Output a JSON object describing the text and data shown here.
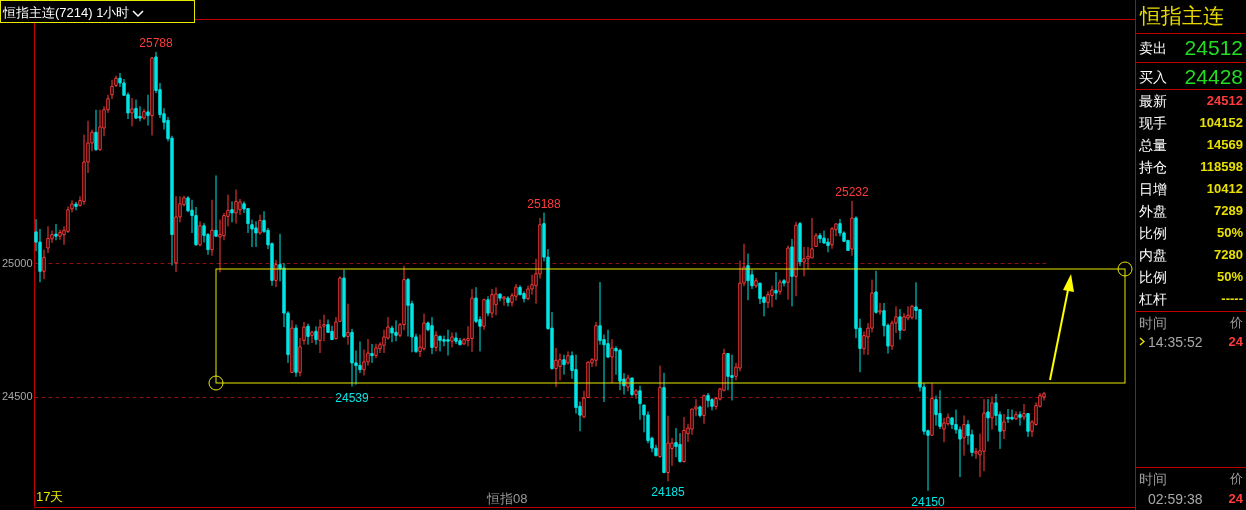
{
  "chart_data": [
    {
      "type": "candlestick",
      "title": "恒指主连(7214)  1小时",
      "categories": [
        null,
        null,
        null,
        null,
        null,
        null,
        null,
        null,
        null,
        null,
        null,
        null,
        null,
        null,
        null,
        null,
        null,
        null,
        null,
        null,
        null,
        null,
        null,
        null,
        null,
        null,
        null,
        null,
        null,
        null,
        null,
        null,
        null,
        null,
        null,
        null,
        null,
        null,
        null,
        null,
        null,
        null,
        null,
        null,
        null,
        null,
        null,
        null,
        null,
        null,
        null,
        null,
        null,
        null,
        null,
        null,
        null,
        null,
        null,
        null,
        null,
        null,
        null,
        null,
        null,
        null,
        null,
        null,
        null,
        null,
        null,
        null,
        null,
        null,
        null,
        null,
        null,
        null,
        null,
        null,
        null,
        null,
        null,
        null,
        null,
        null,
        null,
        null,
        null,
        null,
        null,
        null,
        null,
        null,
        null,
        null,
        null,
        null,
        null,
        null,
        null,
        null,
        null,
        null,
        null,
        null,
        null,
        null,
        null,
        null,
        null,
        null,
        null,
        null,
        null,
        null,
        null,
        null,
        null,
        null,
        null,
        null,
        null,
        null,
        null,
        null,
        null,
        null,
        null,
        null,
        null,
        null,
        null,
        null,
        null,
        null,
        null,
        null,
        null,
        null,
        null,
        null,
        null,
        null,
        null,
        null,
        null,
        null,
        null,
        null,
        null,
        null,
        null,
        null,
        null,
        null,
        null,
        null,
        null,
        null,
        null,
        null,
        null,
        null,
        null,
        null,
        null,
        null,
        null,
        null,
        null,
        null,
        null,
        null,
        null,
        null,
        null,
        null,
        null,
        null,
        null,
        null,
        null,
        null,
        null,
        null,
        null,
        null,
        null,
        null,
        null,
        null,
        null,
        null,
        null,
        null,
        null,
        null,
        null,
        null,
        null,
        null,
        null,
        null,
        null,
        null,
        null,
        null,
        null,
        null,
        null,
        null,
        null,
        null,
        null,
        null,
        null,
        null,
        null,
        null,
        null,
        null,
        null,
        null,
        null,
        null,
        null,
        null,
        null,
        null,
        null,
        null,
        null,
        null,
        null,
        null,
        null,
        null,
        null,
        null,
        null,
        null,
        null,
        null,
        null,
        null,
        null,
        null,
        null,
        null,
        null,
        null,
        null
      ],
      "ohlc": [
        [
          25116,
          25164,
          25044,
          25078
        ],
        [
          25078,
          25127,
          24928,
          24969
        ],
        [
          24969,
          25050,
          24940,
          25021
        ],
        [
          25056,
          25137,
          25037,
          25091
        ],
        [
          25090,
          25121,
          25075,
          25106
        ],
        [
          25108,
          25146,
          25085,
          25100
        ],
        [
          25100,
          25124,
          25087,
          25114
        ],
        [
          25106,
          25137,
          25068,
          25122
        ],
        [
          25118,
          25211,
          25112,
          25199
        ],
        [
          25202,
          25234,
          25189,
          25220
        ],
        [
          25220,
          25228,
          25197,
          25211
        ],
        [
          25215,
          25249,
          25211,
          25233
        ],
        [
          25230,
          25479,
          25218,
          25377
        ],
        [
          25377,
          25531,
          25336,
          25448
        ],
        [
          25448,
          25498,
          25417,
          25488
        ],
        [
          25488,
          25572,
          25419,
          25423
        ],
        [
          25423,
          25572,
          25419,
          25508
        ],
        [
          25504,
          25585,
          25473,
          25572
        ],
        [
          25572,
          25628,
          25560,
          25613
        ],
        [
          25628,
          25684,
          25612,
          25659
        ],
        [
          25663,
          25699,
          25657,
          25690
        ],
        [
          25690,
          25709,
          25657,
          25672
        ],
        [
          25672,
          25687,
          25626,
          25626
        ],
        [
          25628,
          25637,
          25537,
          25560
        ],
        [
          25560,
          25616,
          25510,
          25575
        ],
        [
          25577,
          25610,
          25537,
          25541
        ],
        [
          25547,
          25585,
          25529,
          25541
        ],
        [
          25541,
          25575,
          25535,
          25565
        ],
        [
          25564,
          25628,
          25513,
          25551
        ],
        [
          25550,
          25769,
          25476,
          25765
        ],
        [
          25769,
          25788,
          25634,
          25644
        ],
        [
          25647,
          25672,
          25541,
          25554
        ],
        [
          25557,
          25578,
          25498,
          25525
        ],
        [
          25532,
          25545,
          25454,
          25464
        ],
        [
          25466,
          25475,
          24991,
          25106
        ],
        [
          25000,
          25249,
          24966,
          25172
        ],
        [
          25172,
          25249,
          25152,
          25221
        ],
        [
          25218,
          25251,
          25211,
          25243
        ],
        [
          25243,
          25249,
          25190,
          25195
        ],
        [
          25197,
          25236,
          25112,
          25177
        ],
        [
          25177,
          25209,
          25065,
          25068
        ],
        [
          25068,
          25156,
          25062,
          25139
        ],
        [
          25139,
          25149,
          25077,
          25103
        ],
        [
          25106,
          25112,
          25031,
          25050
        ],
        [
          25050,
          25236,
          25027,
          25122
        ],
        [
          25122,
          25327,
          25097,
          25100
        ],
        [
          25097,
          25162,
          24965,
          25106
        ],
        [
          25102,
          25187,
          25085,
          25177
        ],
        [
          25174,
          25255,
          25137,
          25197
        ],
        [
          25199,
          25230,
          25152,
          25187
        ],
        [
          25187,
          25274,
          25147,
          25230
        ],
        [
          25199,
          25239,
          25180,
          25228
        ],
        [
          25221,
          25230,
          25187,
          25202
        ],
        [
          25203,
          25205,
          25112,
          25147
        ],
        [
          25143,
          25162,
          25060,
          25127
        ],
        [
          25131,
          25156,
          25060,
          25112
        ],
        [
          25112,
          25180,
          25106,
          25159
        ],
        [
          25159,
          25193,
          25112,
          25118
        ],
        [
          25122,
          25131,
          25052,
          25068
        ],
        [
          25072,
          25077,
          24915,
          24935
        ],
        [
          24935,
          25012,
          24910,
          24994
        ],
        [
          24994,
          25109,
          24932,
          24978
        ],
        [
          24981,
          25000,
          24761,
          24813
        ],
        [
          24813,
          24820,
          24627,
          24658
        ],
        [
          24592,
          24786,
          24589,
          24757
        ],
        [
          24757,
          24770,
          24575,
          24592
        ],
        [
          24592,
          24720,
          24577,
          24687
        ],
        [
          24711,
          24780,
          24695,
          24761
        ],
        [
          24764,
          24774,
          24695,
          24726
        ],
        [
          24730,
          24747,
          24701,
          24742
        ],
        [
          24745,
          24764,
          24695,
          24714
        ],
        [
          24711,
          24789,
          24664,
          24761
        ],
        [
          24764,
          24807,
          24708,
          24770
        ],
        [
          24770,
          24789,
          24739,
          24741
        ],
        [
          24745,
          24766,
          24714,
          24714
        ],
        [
          24718,
          24798,
          24714,
          24780
        ],
        [
          24782,
          24950,
          24780,
          24944
        ],
        [
          24944,
          24975,
          24720,
          24726
        ],
        [
          24726,
          24848,
          24695,
          24741
        ],
        [
          24741,
          24754,
          24539,
          24627
        ],
        [
          24627,
          24673,
          24546,
          24617
        ],
        [
          24618,
          24707,
          24589,
          24602
        ],
        [
          24602,
          24677,
          24580,
          24631
        ],
        [
          24631,
          24716,
          24617,
          24664
        ],
        [
          24662,
          24698,
          24627,
          24654
        ],
        [
          24655,
          24699,
          24645,
          24683
        ],
        [
          24680,
          24704,
          24664,
          24695
        ],
        [
          24693,
          24751,
          24664,
          24724
        ],
        [
          24720,
          24798,
          24714,
          24761
        ],
        [
          24757,
          24766,
          24704,
          24739
        ],
        [
          24741,
          24786,
          24708,
          24730
        ],
        [
          24730,
          24776,
          24723,
          24770
        ],
        [
          24770,
          24990,
          24749,
          24938
        ],
        [
          24938,
          24944,
          24726,
          24842
        ],
        [
          24848,
          24859,
          24667,
          24724
        ],
        [
          24724,
          24736,
          24664,
          24670
        ],
        [
          24670,
          24733,
          24649,
          24686
        ],
        [
          24680,
          24811,
          24673,
          24776
        ],
        [
          24776,
          24782,
          24745,
          24751
        ],
        [
          24766,
          24798,
          24660,
          24685
        ],
        [
          24685,
          24745,
          24670,
          24730
        ],
        [
          24726,
          24730,
          24670,
          24711
        ],
        [
          24714,
          24729,
          24689,
          24708
        ],
        [
          24714,
          24751,
          24655,
          24708
        ],
        [
          24708,
          24741,
          24685,
          24724
        ],
        [
          24720,
          24741,
          24698,
          24708
        ],
        [
          24710,
          24720,
          24693,
          24695
        ],
        [
          24698,
          24720,
          24695,
          24714
        ],
        [
          24711,
          24764,
          24689,
          24718
        ],
        [
          24718,
          24903,
          24668,
          24869
        ],
        [
          24869,
          24910,
          24776,
          24782
        ],
        [
          24789,
          24801,
          24670,
          24764
        ],
        [
          24764,
          24867,
          24751,
          24863
        ],
        [
          24863,
          24876,
          24801,
          24813
        ],
        [
          24813,
          24903,
          24795,
          24882
        ],
        [
          24844,
          24909,
          24805,
          24884
        ],
        [
          24884,
          24886,
          24857,
          24869
        ],
        [
          24866,
          24876,
          24841,
          24873
        ],
        [
          24869,
          24876,
          24838,
          24853
        ],
        [
          24853,
          24888,
          24838,
          24878
        ],
        [
          24876,
          24922,
          24859,
          24910
        ],
        [
          24909,
          24917,
          24879,
          24882
        ],
        [
          24886,
          24894,
          24853,
          24867
        ],
        [
          24867,
          24915,
          24861,
          24903
        ],
        [
          24903,
          24956,
          24882,
          24919
        ],
        [
          24915,
          25016,
          24848,
          24960
        ],
        [
          24959,
          25168,
          24942,
          25143
        ],
        [
          25147,
          25188,
          25006,
          25022
        ],
        [
          25022,
          25052,
          24751,
          24755
        ],
        [
          24757,
          24817,
          24602,
          24606
        ],
        [
          24606,
          24683,
          24537,
          24637
        ],
        [
          24614,
          24662,
          24562,
          24639
        ],
        [
          24639,
          24658,
          24583,
          24621
        ],
        [
          24627,
          24670,
          24621,
          24654
        ],
        [
          24654,
          24670,
          24568,
          24599
        ],
        [
          24602,
          24658,
          24438,
          24461
        ],
        [
          24465,
          24483,
          24372,
          24432
        ],
        [
          24425,
          24523,
          24421,
          24496
        ],
        [
          24498,
          24633,
          24496,
          24630
        ],
        [
          24627,
          24645,
          24612,
          24639
        ],
        [
          24637,
          24780,
          24614,
          24766
        ],
        [
          24766,
          24929,
          24695,
          24711
        ],
        [
          24714,
          24733,
          24481,
          24695
        ],
        [
          24699,
          24751,
          24645,
          24649
        ],
        [
          24649,
          24716,
          24552,
          24683
        ],
        [
          24681,
          24689,
          24583,
          24672
        ],
        [
          24674,
          24680,
          24525,
          24559
        ],
        [
          24567,
          24589,
          24509,
          24542
        ],
        [
          24537,
          24583,
          24521,
          24571
        ],
        [
          24571,
          24571,
          24502,
          24509
        ],
        [
          24509,
          24529,
          24493,
          24523
        ],
        [
          24523,
          24542,
          24415,
          24475
        ],
        [
          24470,
          24470,
          24368,
          24433
        ],
        [
          24433,
          24446,
          24327,
          24337
        ],
        [
          24346,
          24352,
          24294,
          24309
        ],
        [
          24309,
          24322,
          24278,
          24281
        ],
        [
          24277,
          24617,
          24273,
          24535
        ],
        [
          24535,
          24590,
          24215,
          24218
        ],
        [
          24218,
          24430,
          24185,
          24328
        ],
        [
          24307,
          24347,
          24243,
          24328
        ],
        [
          24330,
          24384,
          24275,
          24315
        ],
        [
          24323,
          24365,
          24255,
          24259
        ],
        [
          24259,
          24425,
          24255,
          24375
        ],
        [
          24363,
          24400,
          24332,
          24384
        ],
        [
          24380,
          24455,
          24359,
          24455
        ],
        [
          24455,
          24492,
          24428,
          24463
        ],
        [
          24463,
          24468,
          24424,
          24431
        ],
        [
          24431,
          24509,
          24400,
          24505
        ],
        [
          24506,
          24515,
          24461,
          24487
        ],
        [
          24490,
          24496,
          24450,
          24465
        ],
        [
          24465,
          24500,
          24453,
          24494
        ],
        [
          24492,
          24534,
          24487,
          24530
        ],
        [
          24525,
          24680,
          24521,
          24662
        ],
        [
          24662,
          24662,
          24525,
          24577
        ],
        [
          24580,
          24658,
          24487,
          24573
        ],
        [
          24577,
          24627,
          24562,
          24612
        ],
        [
          24608,
          25009,
          24596,
          24925
        ],
        [
          24925,
          25072,
          24913,
          24985
        ],
        [
          24990,
          25035,
          24861,
          24934
        ],
        [
          24956,
          24975,
          24903,
          24915
        ],
        [
          24915,
          24944,
          24907,
          24934
        ],
        [
          24925,
          24925,
          24847,
          24867
        ],
        [
          24872,
          24876,
          24801,
          24853
        ],
        [
          24853,
          24894,
          24832,
          24882
        ],
        [
          24879,
          24915,
          24835,
          24900
        ],
        [
          24897,
          24966,
          24863,
          24888
        ],
        [
          24894,
          24938,
          24882,
          24929
        ],
        [
          24934,
          24940,
          24913,
          24925
        ],
        [
          24928,
          25065,
          24863,
          25056
        ],
        [
          25060,
          25090,
          24838,
          24950
        ],
        [
          24950,
          25153,
          24876,
          25141
        ],
        [
          25147,
          25153,
          24988,
          25004
        ],
        [
          25004,
          25060,
          24950,
          25016
        ],
        [
          25016,
          25060,
          24978,
          25025
        ],
        [
          25019,
          25168,
          25019,
          25053
        ],
        [
          25062,
          25112,
          25060,
          25102
        ],
        [
          25103,
          25112,
          25075,
          25091
        ],
        [
          25093,
          25121,
          25071,
          25075
        ],
        [
          25078,
          25093,
          25040,
          25065
        ],
        [
          25068,
          25134,
          25053,
          25128
        ],
        [
          25124,
          25147,
          25100,
          25146
        ],
        [
          25147,
          25164,
          25100,
          25112
        ],
        [
          25112,
          25118,
          25078,
          25081
        ],
        [
          25084,
          25087,
          25046,
          25047
        ],
        [
          25052,
          25232,
          25027,
          25168
        ],
        [
          25168,
          25174,
          24720,
          24755
        ],
        [
          24757,
          24792,
          24592,
          24681
        ],
        [
          24680,
          24745,
          24658,
          24729
        ],
        [
          24724,
          24776,
          24657,
          24757
        ],
        [
          24757,
          24938,
          24741,
          24888
        ],
        [
          24892,
          24971,
          24811,
          24816
        ],
        [
          24817,
          24851,
          24806,
          24822
        ],
        [
          24822,
          24851,
          24726,
          24766
        ],
        [
          24768,
          24774,
          24662,
          24690
        ],
        [
          24690,
          24785,
          24676,
          24776
        ],
        [
          24776,
          24838,
          24739,
          24799
        ],
        [
          24799,
          24828,
          24714,
          24749
        ],
        [
          24749,
          24813,
          24747,
          24799
        ],
        [
          24795,
          24838,
          24786,
          24805
        ],
        [
          24797,
          24844,
          24789,
          24838
        ],
        [
          24836,
          24928,
          24789,
          24823
        ],
        [
          24826,
          24826,
          24521,
          24537
        ],
        [
          24537,
          24552,
          24359,
          24372
        ],
        [
          24374,
          24378,
          24150,
          24357
        ],
        [
          24357,
          24552,
          24357,
          24494
        ],
        [
          24490,
          24505,
          24393,
          24434
        ],
        [
          24438,
          24525,
          24380,
          24390
        ],
        [
          24380,
          24422,
          24331,
          24403
        ],
        [
          24400,
          24438,
          24393,
          24424
        ],
        [
          24422,
          24422,
          24380,
          24397
        ],
        [
          24397,
          24453,
          24363,
          24378
        ],
        [
          24378,
          24390,
          24201,
          24343
        ],
        [
          24347,
          24431,
          24281,
          24397
        ],
        [
          24397,
          24413,
          24322,
          24356
        ],
        [
          24359,
          24378,
          24278,
          24293
        ],
        [
          24290,
          24309,
          24269,
          24296
        ],
        [
          24284,
          24363,
          24201,
          24299
        ],
        [
          24297,
          24492,
          24223,
          24440
        ],
        [
          24444,
          24492,
          24334,
          24422
        ],
        [
          24422,
          24502,
          24378,
          24478
        ],
        [
          24478,
          24511,
          24393,
          24431
        ],
        [
          24434,
          24446,
          24306,
          24372
        ],
        [
          24374,
          24436,
          24343,
          24407
        ],
        [
          24424,
          24455,
          24403,
          24418
        ],
        [
          24424,
          24453,
          24413,
          24418
        ],
        [
          24418,
          24446,
          24415,
          24434
        ],
        [
          24434,
          24446,
          24393,
          24424
        ],
        [
          24425,
          24474,
          24413,
          24438
        ],
        [
          24438,
          24440,
          24351,
          24372
        ],
        [
          24372,
          24413,
          24351,
          24407
        ],
        [
          24397,
          24480,
          24393,
          24468
        ],
        [
          24465,
          24515,
          24461,
          24505
        ],
        [
          24500,
          24519,
          24487,
          24512
        ]
      ],
      "ylim": [
        24093,
        25907
      ],
      "yticks": [
        25000,
        24500
      ],
      "grid": "y",
      "tick_labels": "y",
      "annotations": [
        {
          "text": "25788",
          "y": 25788
        },
        {
          "text": "25188",
          "y": 25188
        },
        {
          "text": "25232",
          "y": 25232
        },
        {
          "text": "24539",
          "y": 24539
        },
        {
          "text": "24185",
          "y": 24185
        },
        {
          "text": "24150",
          "y": 24150
        },
        "17天",
        "恒指08"
      ]
    },
    {
      "type": "other",
      "title": "恒指主连",
      "annotations": [
        "卖出",
        "24512",
        "买入",
        "24428",
        "最新",
        "24512",
        "现手",
        "104152",
        "总量",
        "14569",
        "持仓",
        "118598",
        "日增",
        "10412",
        "外盘",
        "7289",
        "比例",
        "50%",
        "内盘",
        "7280",
        "比例",
        "50%",
        "杠杆",
        "-----",
        "时间",
        "价",
        "14:35:52",
        "24",
        "时间",
        "价",
        "02:59:38",
        "24"
      ]
    }
  ]
}
